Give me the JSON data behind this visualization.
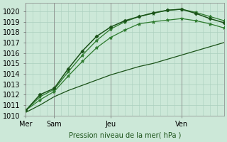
{
  "background_color": "#cce8d8",
  "grid_color": "#aacfbe",
  "line_color_dark": "#1a5218",
  "line_color_mid": "#2d7a2d",
  "xlim": [
    0,
    56
  ],
  "ylim": [
    1010,
    1020.8
  ],
  "yticks": [
    1010,
    1011,
    1012,
    1013,
    1014,
    1015,
    1016,
    1017,
    1018,
    1019,
    1020
  ],
  "xtick_positions": [
    0,
    8,
    24,
    44
  ],
  "xtick_labels": [
    "Mer",
    "Sam",
    "Jeu",
    "Ven"
  ],
  "vline_positions": [
    0,
    8,
    24,
    44
  ],
  "xlabel": "Pression niveau de la mer( hPa )",
  "fontsize": 7,
  "line1": {
    "x": [
      0,
      4,
      8,
      12,
      16,
      20,
      24,
      28,
      32,
      36,
      40,
      44,
      48,
      52,
      56
    ],
    "y": [
      1010.3,
      1011.0,
      1011.8,
      1012.4,
      1012.9,
      1013.4,
      1013.9,
      1014.3,
      1014.7,
      1015.0,
      1015.4,
      1015.8,
      1016.2,
      1016.6,
      1017.0
    ],
    "color": "#1a5218",
    "lw": 0.9,
    "marker": null
  },
  "line2": {
    "x": [
      0,
      4,
      8,
      12,
      16,
      20,
      24,
      28,
      32,
      36,
      40,
      44,
      48,
      52,
      56
    ],
    "y": [
      1010.5,
      1011.5,
      1012.3,
      1013.8,
      1015.2,
      1016.5,
      1017.5,
      1018.2,
      1018.8,
      1019.0,
      1019.15,
      1019.3,
      1019.1,
      1018.8,
      1018.4
    ],
    "color": "#2d7a2d",
    "lw": 0.9,
    "marker": "*",
    "markersize": 3.5
  },
  "line3": {
    "x": [
      0,
      4,
      8,
      12,
      16,
      20,
      24,
      28,
      32,
      36,
      40,
      44,
      48,
      52,
      56
    ],
    "y": [
      1010.5,
      1011.8,
      1012.5,
      1014.2,
      1015.8,
      1017.2,
      1018.3,
      1019.0,
      1019.5,
      1019.8,
      1020.1,
      1020.2,
      1019.9,
      1019.5,
      1019.1
    ],
    "color": "#2d7a2d",
    "lw": 0.9,
    "marker": "*",
    "markersize": 3.5
  },
  "line4": {
    "x": [
      0,
      4,
      8,
      12,
      16,
      20,
      24,
      28,
      32,
      36,
      40,
      44,
      48,
      52,
      56
    ],
    "y": [
      1010.5,
      1012.0,
      1012.6,
      1014.5,
      1016.2,
      1017.6,
      1018.5,
      1019.1,
      1019.5,
      1019.85,
      1020.1,
      1020.2,
      1019.8,
      1019.3,
      1018.9
    ],
    "color": "#1a5218",
    "lw": 1.1,
    "marker": "D",
    "markersize": 2.5
  }
}
